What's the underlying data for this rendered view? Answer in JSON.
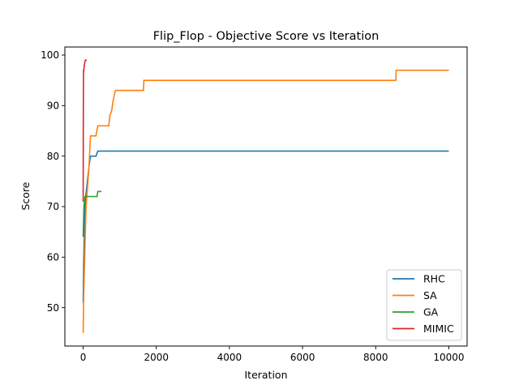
{
  "chart_data": {
    "type": "line",
    "title": "Flip_Flop - Objective Score vs Iteration",
    "xlabel": "Iteration",
    "ylabel": "Score",
    "xlim": [
      -500,
      10500
    ],
    "ylim": [
      42.4,
      101.6
    ],
    "xticks": [
      0,
      2000,
      4000,
      6000,
      8000,
      10000
    ],
    "yticks": [
      50,
      60,
      70,
      80,
      90,
      100
    ],
    "grid": false,
    "legend_position": "lower-right",
    "series": [
      {
        "name": "RHC",
        "color": "#1f77b4",
        "x": [
          0,
          15,
          30,
          50,
          70,
          100,
          130,
          160,
          200,
          350,
          400,
          10000
        ],
        "y": [
          51,
          59,
          64,
          70,
          72,
          74,
          76,
          78,
          80,
          80,
          81,
          81
        ]
      },
      {
        "name": "SA",
        "color": "#ff7f0e",
        "x": [
          0,
          10,
          20,
          40,
          60,
          80,
          100,
          130,
          160,
          200,
          350,
          400,
          700,
          730,
          780,
          820,
          880,
          1650,
          1660,
          8550,
          8560,
          10000
        ],
        "y": [
          45,
          51,
          54,
          59,
          65,
          70,
          72,
          75,
          78,
          84,
          84,
          86,
          86,
          88,
          89,
          91,
          93,
          93,
          95,
          95,
          97,
          97
        ]
      },
      {
        "name": "GA",
        "color": "#2ca02c",
        "x": [
          0,
          10,
          20,
          50,
          100,
          380,
          400,
          500
        ],
        "y": [
          64,
          67,
          70,
          72,
          72,
          72,
          73,
          73
        ]
      },
      {
        "name": "MIMIC",
        "color": "#d62728",
        "x": [
          0,
          5,
          10,
          20,
          30,
          60,
          100
        ],
        "y": [
          71,
          90,
          97,
          97,
          98,
          99,
          99
        ]
      }
    ]
  }
}
